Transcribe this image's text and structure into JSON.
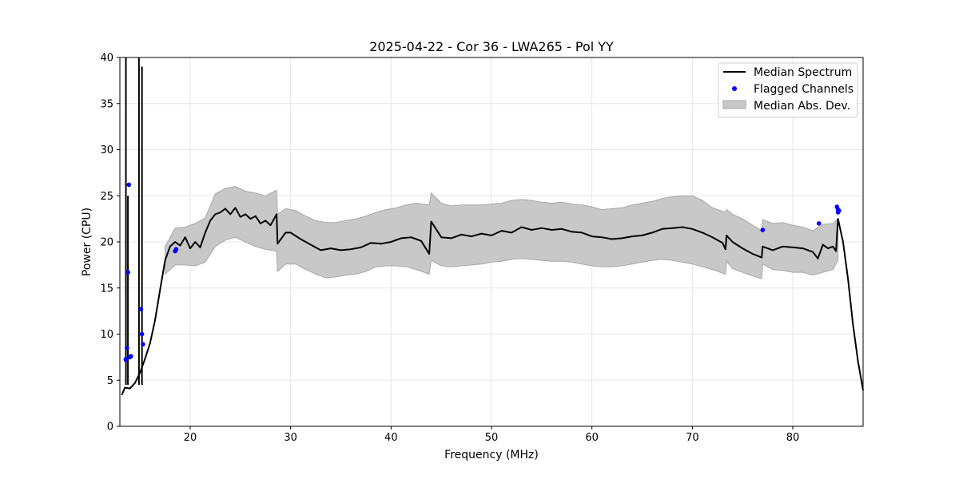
{
  "chart_data": {
    "type": "line",
    "title": "2025-04-22 - Cor 36 - LWA265 - Pol YY",
    "xlabel": "Frequency (MHz)",
    "ylabel": "Power (CPU)",
    "xlim": [
      13.0,
      87.0
    ],
    "ylim": [
      0,
      40
    ],
    "xticks": [
      20,
      30,
      40,
      50,
      60,
      70,
      80
    ],
    "yticks": [
      0,
      5,
      10,
      15,
      20,
      25,
      30,
      35,
      40
    ],
    "grid": true,
    "legend_position": "top-right",
    "legend": [
      "Median Spectrum",
      "Flagged Channels",
      "Median Abs. Dev."
    ],
    "colors": {
      "median": "#000000",
      "flagged": "#0000ff",
      "mad_fill": "#c8c8c8",
      "mad_edge": "#a8a8a8",
      "grid": "#e6e6e6"
    },
    "series": [
      {
        "name": "Median Spectrum",
        "x": [
          13.2,
          13.5,
          14.0,
          14.5,
          15.0,
          15.5,
          16.0,
          16.5,
          17.0,
          17.5,
          18.0,
          18.5,
          19.0,
          19.5,
          20.0,
          20.5,
          21.0,
          21.5,
          22.0,
          22.5,
          23.0,
          23.5,
          24.0,
          24.5,
          25.0,
          25.5,
          26.0,
          26.5,
          27.0,
          27.5,
          28.0,
          28.6,
          28.7,
          29.5,
          30.0,
          31.0,
          32.0,
          33.0,
          34.0,
          35.0,
          36.0,
          37.0,
          38.0,
          39.0,
          40.0,
          41.0,
          42.0,
          43.0,
          43.8,
          44.0,
          45.0,
          46.0,
          47.0,
          48.0,
          49.0,
          50.0,
          51.0,
          52.0,
          53.0,
          54.0,
          55.0,
          56.0,
          57.0,
          58.0,
          59.0,
          60.0,
          61.0,
          62.0,
          63.0,
          64.0,
          65.0,
          66.0,
          67.0,
          68.0,
          69.0,
          70.0,
          71.0,
          72.0,
          73.0,
          73.3,
          73.4,
          74.0,
          75.0,
          76.0,
          76.9,
          77.0,
          78.0,
          79.0,
          80.0,
          81.0,
          82.0,
          82.5,
          83.0,
          83.5,
          84.0,
          84.3,
          84.5,
          85.0,
          85.5,
          86.0,
          86.5,
          87.0
        ],
        "y": [
          3.4,
          4.2,
          4.1,
          4.7,
          5.8,
          7.3,
          9.0,
          11.5,
          14.8,
          18.0,
          19.5,
          20.0,
          19.6,
          20.5,
          19.3,
          20.0,
          19.4,
          21.0,
          22.3,
          23.0,
          23.2,
          23.6,
          23.0,
          23.7,
          22.7,
          23.0,
          22.5,
          22.8,
          22.0,
          22.3,
          21.8,
          23.0,
          19.8,
          21.0,
          21.0,
          20.3,
          19.7,
          19.1,
          19.3,
          19.1,
          19.2,
          19.4,
          19.9,
          19.8,
          20.0,
          20.4,
          20.5,
          20.1,
          18.7,
          22.2,
          20.5,
          20.4,
          20.8,
          20.6,
          20.9,
          20.7,
          21.2,
          21.0,
          21.6,
          21.3,
          21.5,
          21.3,
          21.4,
          21.1,
          21.0,
          20.6,
          20.5,
          20.3,
          20.4,
          20.6,
          20.7,
          21.0,
          21.4,
          21.5,
          21.6,
          21.4,
          21.0,
          20.5,
          19.9,
          19.2,
          20.7,
          20.0,
          19.3,
          18.7,
          18.3,
          19.5,
          19.1,
          19.5,
          19.4,
          19.3,
          18.9,
          18.2,
          19.7,
          19.3,
          19.5,
          19.0,
          22.5,
          20.0,
          16.0,
          11.0,
          7.0,
          3.9
        ]
      }
    ],
    "mad_band": {
      "name": "Median Abs. Dev.",
      "x": [
        17.5,
        18.5,
        19.5,
        20.5,
        21.5,
        22.5,
        23.5,
        24.5,
        25.5,
        26.5,
        27.5,
        28.6,
        28.7,
        29.5,
        30.5,
        31.5,
        32.5,
        33.5,
        34.5,
        35.5,
        36.5,
        37.5,
        38.5,
        39.5,
        40.5,
        41.5,
        42.5,
        43.8,
        44.0,
        45.0,
        46.0,
        47.0,
        48.0,
        49.0,
        50.0,
        51.0,
        52.0,
        53.0,
        54.0,
        55.0,
        56.0,
        57.0,
        58.0,
        59.0,
        60.0,
        61.0,
        62.0,
        63.0,
        64.0,
        65.0,
        66.0,
        67.0,
        68.0,
        69.0,
        70.0,
        71.0,
        72.0,
        73.3,
        73.4,
        74.0,
        75.0,
        76.0,
        76.9,
        77.0,
        78.0,
        79.0,
        80.0,
        81.0,
        82.0,
        83.0,
        84.0,
        84.5
      ],
      "upper": [
        19.5,
        21.5,
        21.6,
        22.0,
        22.6,
        25.2,
        25.8,
        26.0,
        25.5,
        25.3,
        25.0,
        25.6,
        23.0,
        23.6,
        23.4,
        22.8,
        22.3,
        22.1,
        22.1,
        22.3,
        22.5,
        22.8,
        23.2,
        23.5,
        23.7,
        24.0,
        24.2,
        24.0,
        25.3,
        24.2,
        23.9,
        24.0,
        24.0,
        24.0,
        24.1,
        24.2,
        24.5,
        24.6,
        24.5,
        24.3,
        24.2,
        24.3,
        24.1,
        24.0,
        23.8,
        23.5,
        23.6,
        23.7,
        24.0,
        24.2,
        24.4,
        24.7,
        24.9,
        25.0,
        25.0,
        24.5,
        23.7,
        23.2,
        23.5,
        23.0,
        22.5,
        21.8,
        21.2,
        22.4,
        22.0,
        22.1,
        21.8,
        21.6,
        21.2,
        21.9,
        22.0,
        22.5
      ],
      "lower": [
        16.5,
        17.5,
        17.5,
        17.4,
        17.8,
        19.5,
        20.2,
        20.5,
        20.0,
        19.5,
        19.2,
        19.0,
        16.8,
        17.6,
        17.6,
        17.0,
        16.5,
        16.1,
        16.2,
        16.4,
        16.5,
        16.8,
        17.3,
        17.4,
        17.4,
        17.3,
        17.0,
        16.5,
        18.0,
        17.4,
        17.3,
        17.4,
        17.5,
        17.6,
        17.8,
        17.9,
        18.1,
        18.2,
        18.1,
        18.0,
        17.9,
        17.9,
        17.8,
        17.6,
        17.4,
        17.3,
        17.3,
        17.4,
        17.6,
        17.8,
        18.0,
        18.1,
        18.0,
        17.8,
        17.6,
        17.3,
        17.0,
        16.5,
        17.9,
        17.1,
        16.7,
        16.3,
        16.0,
        17.6,
        17.0,
        16.9,
        16.7,
        16.7,
        16.4,
        16.7,
        17.0,
        18.0
      ]
    },
    "spikes": [
      {
        "x": 13.6,
        "y": 40
      },
      {
        "x": 13.8,
        "y": 25.0
      },
      {
        "x": 14.9,
        "y": 40
      },
      {
        "x": 15.2,
        "y": 39.0
      }
    ],
    "flagged_channels": {
      "name": "Flagged Channels",
      "x": [
        13.6,
        13.7,
        13.8,
        13.9,
        14.0,
        14.1,
        13.6,
        15.1,
        15.2,
        15.3,
        18.5,
        18.6,
        77.0,
        82.6,
        84.4,
        84.5,
        84.5,
        84.6
      ],
      "y": [
        7.2,
        8.5,
        16.7,
        26.2,
        7.5,
        7.6,
        7.3,
        12.7,
        10.0,
        8.9,
        19.0,
        19.2,
        21.3,
        22.0,
        23.8,
        23.5,
        23.2,
        23.4
      ]
    }
  }
}
